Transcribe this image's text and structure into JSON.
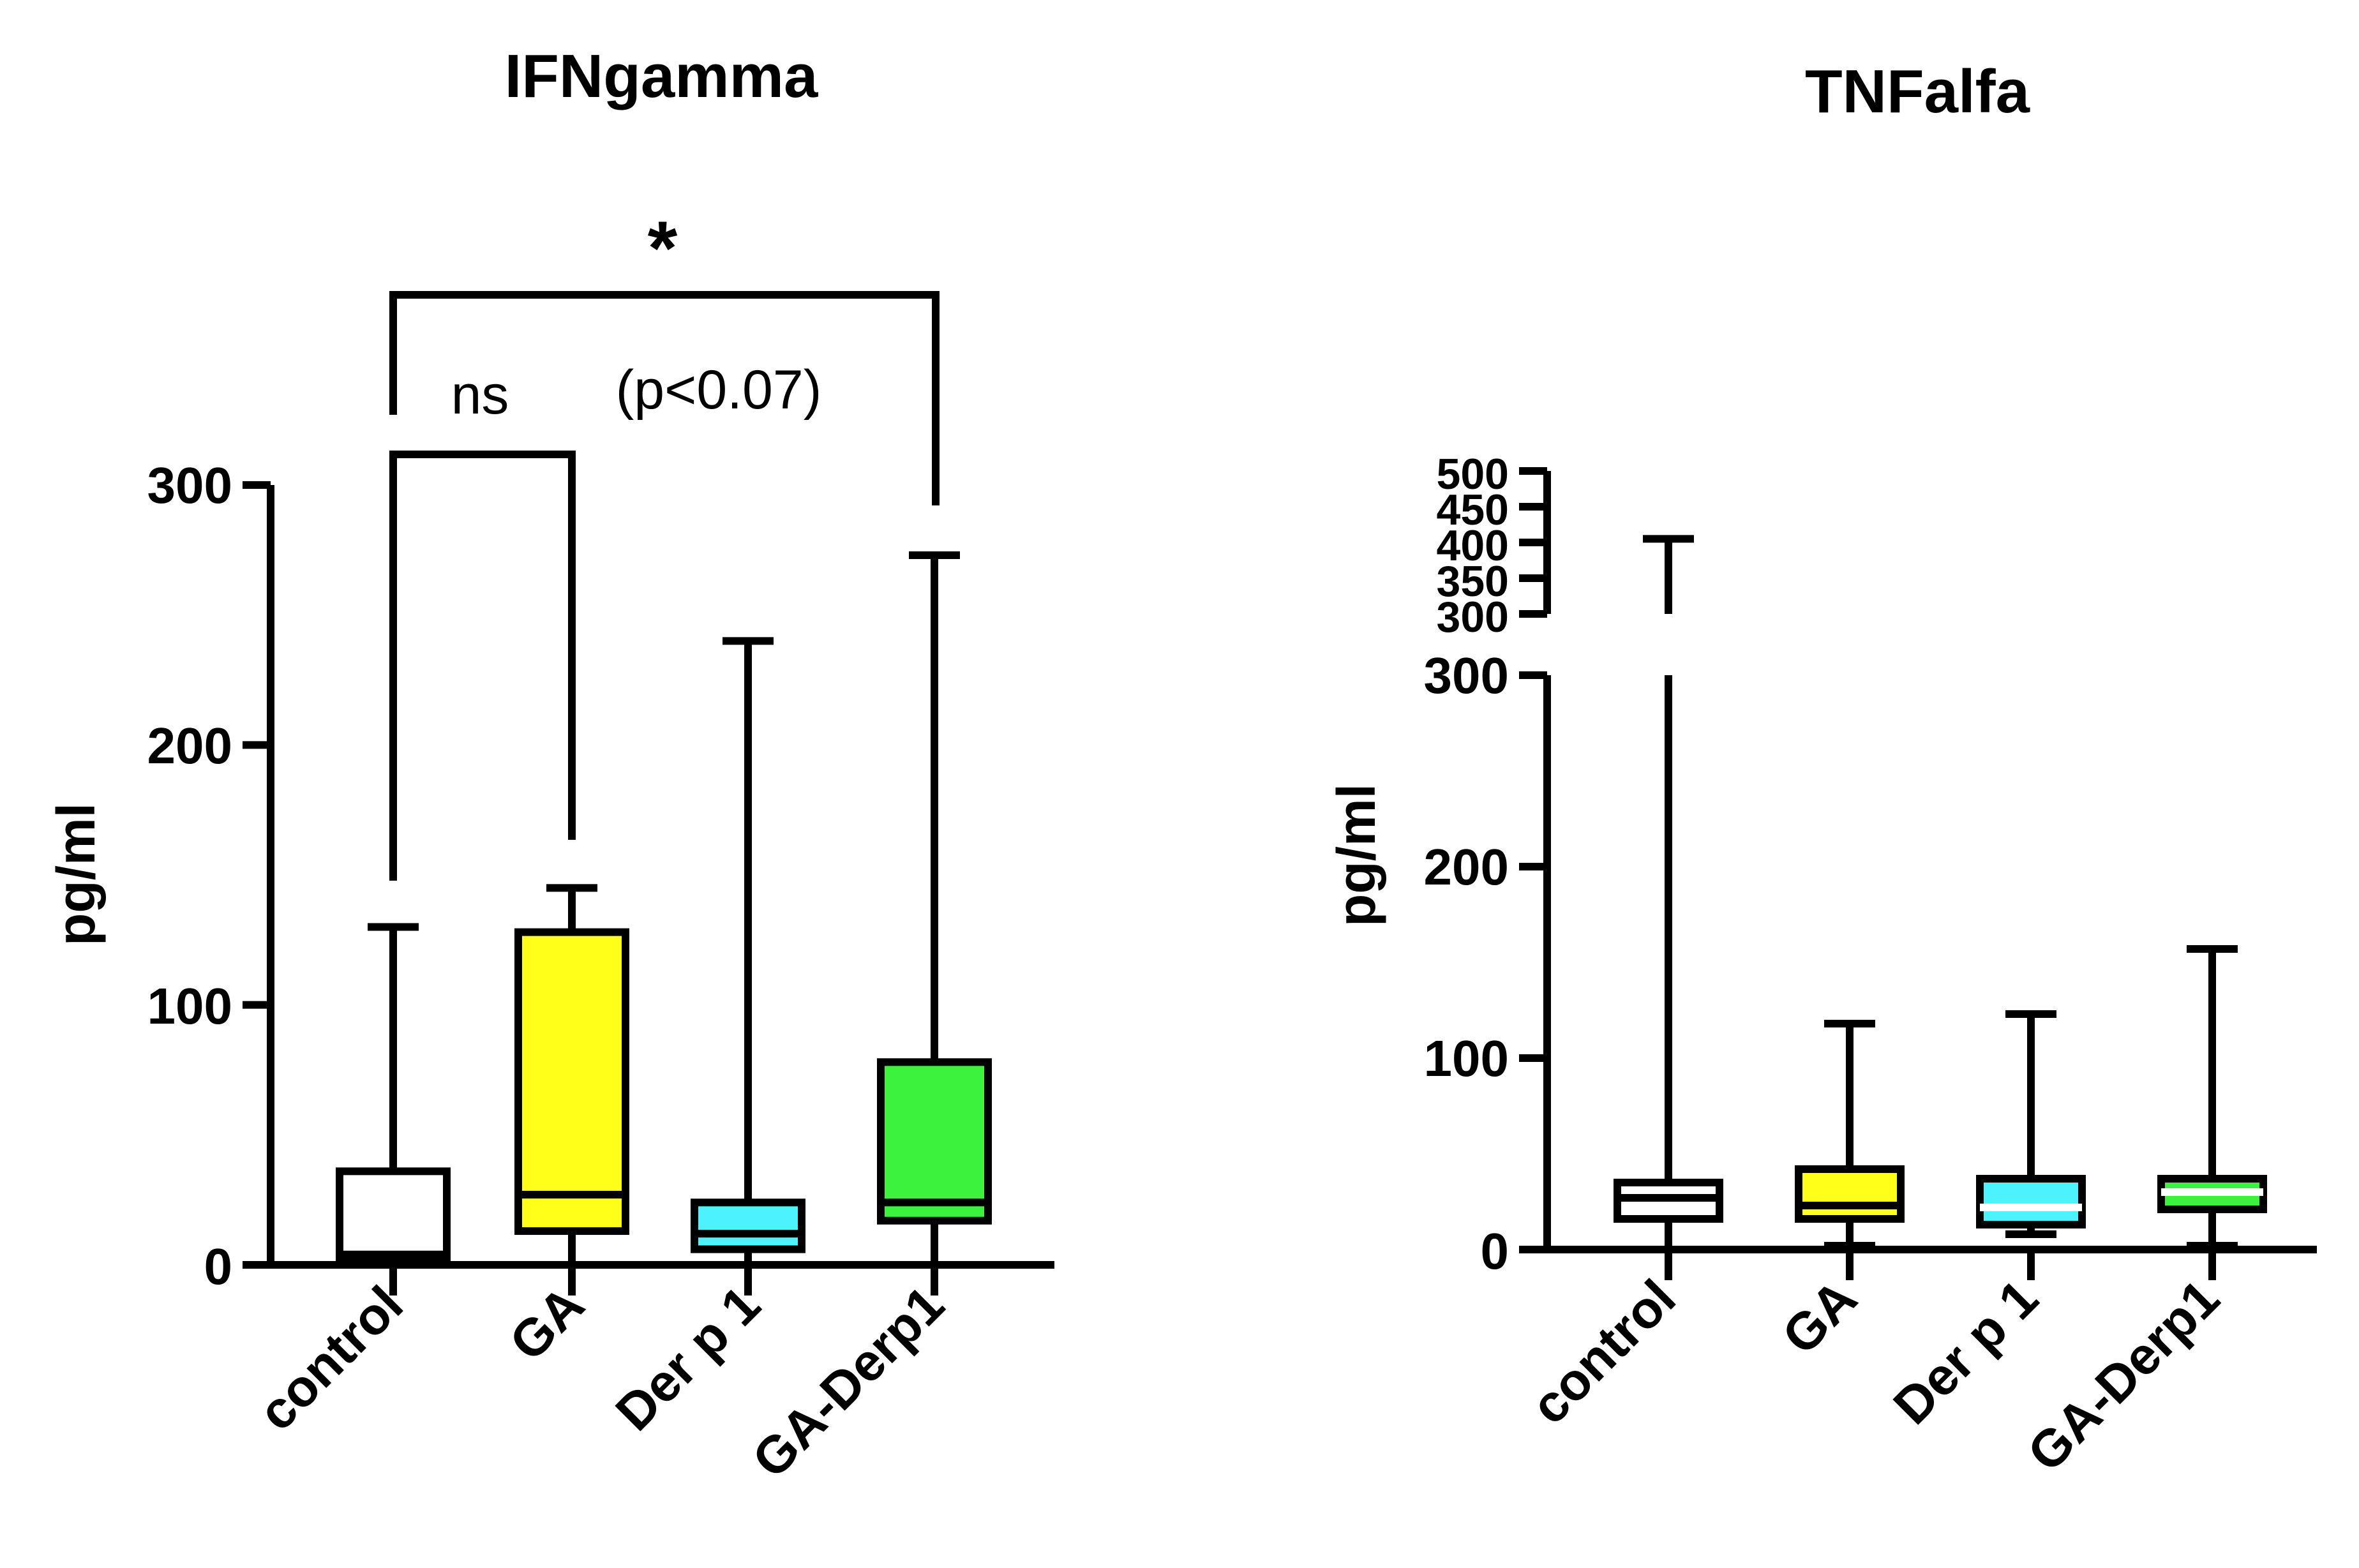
{
  "chart_data": [
    {
      "type": "box",
      "title": "IFNgamma",
      "ylabel": "pg/ml",
      "xlabel": "",
      "ylim": [
        0,
        300
      ],
      "yticks": [
        "0",
        "100",
        "200",
        "300"
      ],
      "categories": [
        "control",
        "GA",
        "Der p 1",
        "GA-Derp1"
      ],
      "boxes": [
        {
          "name": "control",
          "min": 0,
          "q1": 2,
          "median": 4,
          "q3": 36,
          "max": 130,
          "color": "#ffffff"
        },
        {
          "name": "GA",
          "min": 0,
          "q1": 13,
          "median": 27,
          "q3": 128,
          "max": 145,
          "color": "#ffff1a"
        },
        {
          "name": "Der p 1",
          "min": 0,
          "q1": 6,
          "median": 12,
          "q3": 24,
          "max": 240,
          "color": "#4df2ff"
        },
        {
          "name": "GA-Derp1",
          "min": 0,
          "q1": 17,
          "median": 24,
          "q3": 78,
          "max": 273,
          "color": "#3df23d"
        }
      ],
      "annotations": {
        "ns_label": "ns",
        "p_label": "(p<0.07)",
        "star_label": "*"
      }
    },
    {
      "type": "box",
      "title": "TNFalfa",
      "ylabel": "pg/ml",
      "xlabel": "",
      "ylim": [
        0,
        500
      ],
      "axis_break": [
        300,
        300
      ],
      "yticks_lower": [
        "0",
        "100",
        "200",
        "300"
      ],
      "yticks_upper": [
        "300",
        "350",
        "400",
        "450",
        "500"
      ],
      "categories": [
        "control",
        "GA",
        "Der p 1",
        "GA-Derp1"
      ],
      "boxes": [
        {
          "name": "control",
          "min": 0,
          "q1": 16,
          "median": 27,
          "q3": 35,
          "max": 405,
          "color": "#ffffff"
        },
        {
          "name": "GA",
          "min": 2,
          "q1": 16,
          "median": 23,
          "q3": 42,
          "max": 118,
          "color": "#ffff1a"
        },
        {
          "name": "Der p 1",
          "min": 8,
          "q1": 13,
          "median": 22,
          "q3": 37,
          "max": 123,
          "color": "#4df2ff"
        },
        {
          "name": "GA-Derp1",
          "min": 2,
          "q1": 21,
          "median": 30,
          "q3": 37,
          "max": 157,
          "color": "#3df23d"
        }
      ]
    }
  ]
}
